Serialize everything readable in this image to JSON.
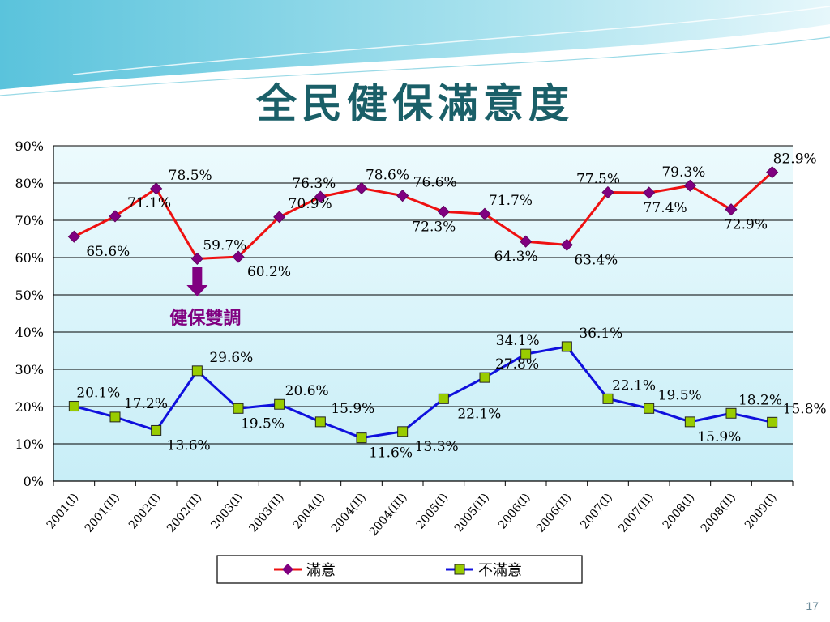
{
  "slide": {
    "title": "全民健保滿意度",
    "page_number": "17"
  },
  "annotation": {
    "text": "健保雙調",
    "color": "#800080"
  },
  "colors": {
    "satisfied_line": "#ee1111",
    "satisfied_marker": "#800080",
    "dissatisfied_line": "#1010dd",
    "dissatisfied_marker": "#99cc00",
    "plot_bg_top": "#ecfafd",
    "plot_bg_bottom": "#c8eef7",
    "title": "#1a5f68"
  },
  "chart_data": {
    "type": "line",
    "categories": [
      "2001(I)",
      "2001(II)",
      "2002(I)",
      "2002(II)",
      "2003(I)",
      "2003(II)",
      "2004(I)",
      "2004(II)",
      "2004(III)",
      "2005(I)",
      "2005(II)",
      "2006(I)",
      "2006(II)",
      "2007(I)",
      "2007(II)",
      "2008(I)",
      "2008(II)",
      "2009(I)"
    ],
    "ylim": [
      0,
      90
    ],
    "yticks": [
      0,
      10,
      20,
      30,
      40,
      50,
      60,
      70,
      80,
      90
    ],
    "ytick_labels": [
      "0%",
      "10%",
      "20%",
      "30%",
      "40%",
      "50%",
      "60%",
      "70%",
      "80%",
      "90%"
    ],
    "grid": true,
    "legend_position": "bottom",
    "series": [
      {
        "name": "滿意",
        "marker": "diamond",
        "values": [
          65.6,
          71.1,
          78.5,
          59.7,
          60.2,
          70.9,
          76.3,
          78.6,
          76.6,
          72.3,
          71.7,
          64.3,
          63.4,
          77.5,
          77.4,
          79.3,
          72.9,
          82.9
        ],
        "labels": [
          "65.6%",
          "71.1%",
          "78.5%",
          "59.7%",
          "60.2%",
          "70.9%",
          "76.3%",
          "78.6%",
          "76.6%",
          "72.3%",
          "71.7%",
          "64.3%",
          "63.4%",
          "77.5%",
          "77.4%",
          "79.3%",
          "72.9%",
          "82.9%"
        ]
      },
      {
        "name": "不滿意",
        "marker": "square",
        "values": [
          20.1,
          17.2,
          13.6,
          29.6,
          19.5,
          20.6,
          15.9,
          11.6,
          13.3,
          22.1,
          27.8,
          34.1,
          36.1,
          22.1,
          19.5,
          15.9,
          18.2,
          15.8
        ],
        "labels": [
          "20.1%",
          "17.2%",
          "13.6%",
          "29.6%",
          "19.5%",
          "20.6%",
          "15.9%",
          "11.6%",
          "13.3%",
          "22.1%",
          "27.8%",
          "34.1%",
          "36.1%",
          "22.1%",
          "19.5%",
          "15.9%",
          "18.2%",
          "15.8%"
        ]
      }
    ]
  }
}
